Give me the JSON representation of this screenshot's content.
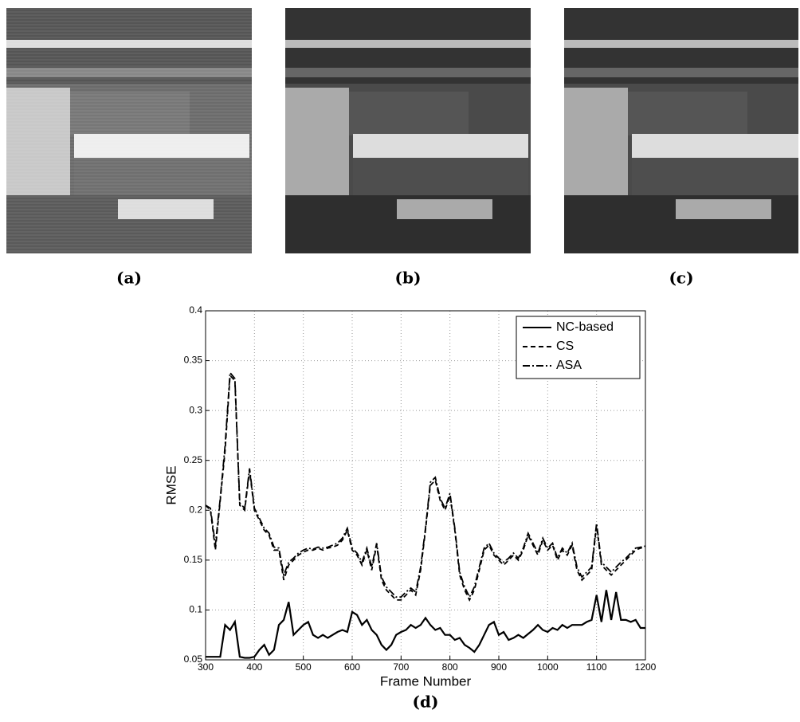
{
  "panels": {
    "captions": [
      "(a)",
      "(b)",
      "(c)",
      "(d)"
    ]
  },
  "chart_data": {
    "type": "line",
    "x_label": "Frame Number",
    "y_label": "RMSE",
    "xlim": [
      300,
      1200
    ],
    "ylim": [
      0.05,
      0.4
    ],
    "xticks": [
      300,
      400,
      500,
      600,
      700,
      800,
      900,
      1000,
      1100,
      1200
    ],
    "yticks": [
      0.05,
      0.1,
      0.15,
      0.2,
      0.25,
      0.3,
      0.35,
      0.4
    ],
    "grid": true,
    "legend": "top-right",
    "x": [
      300,
      310,
      320,
      330,
      340,
      350,
      360,
      370,
      380,
      390,
      400,
      410,
      420,
      430,
      440,
      450,
      460,
      470,
      480,
      490,
      500,
      510,
      520,
      530,
      540,
      550,
      560,
      570,
      580,
      590,
      600,
      610,
      620,
      630,
      640,
      650,
      660,
      670,
      680,
      690,
      700,
      710,
      720,
      730,
      740,
      750,
      760,
      770,
      780,
      790,
      800,
      810,
      820,
      830,
      840,
      850,
      860,
      870,
      880,
      890,
      900,
      910,
      920,
      930,
      940,
      950,
      960,
      970,
      980,
      990,
      1000,
      1010,
      1020,
      1030,
      1040,
      1050,
      1060,
      1070,
      1080,
      1090,
      1100,
      1110,
      1120,
      1130,
      1140,
      1150,
      1160,
      1170,
      1180,
      1190,
      1200
    ],
    "series": [
      {
        "name": "NC-based",
        "color": "#000000",
        "style": "solid",
        "values": [
          0.053,
          0.053,
          0.053,
          0.053,
          0.085,
          0.08,
          0.088,
          0.053,
          0.052,
          0.052,
          0.053,
          0.06,
          0.065,
          0.055,
          0.06,
          0.085,
          0.09,
          0.108,
          0.075,
          0.08,
          0.085,
          0.088,
          0.075,
          0.072,
          0.075,
          0.072,
          0.075,
          0.078,
          0.08,
          0.078,
          0.098,
          0.095,
          0.085,
          0.09,
          0.08,
          0.075,
          0.065,
          0.06,
          0.065,
          0.075,
          0.078,
          0.08,
          0.085,
          0.082,
          0.085,
          0.092,
          0.085,
          0.08,
          0.082,
          0.075,
          0.075,
          0.07,
          0.072,
          0.065,
          0.062,
          0.058,
          0.065,
          0.075,
          0.085,
          0.088,
          0.075,
          0.078,
          0.07,
          0.072,
          0.075,
          0.072,
          0.076,
          0.08,
          0.085,
          0.08,
          0.078,
          0.082,
          0.08,
          0.085,
          0.082,
          0.085,
          0.085,
          0.085,
          0.088,
          0.09,
          0.115,
          0.088,
          0.12,
          0.09,
          0.118,
          0.09,
          0.09,
          0.088,
          0.09,
          0.082,
          0.082
        ]
      },
      {
        "name": "CS",
        "color": "#000000",
        "style": "dashed",
        "values": [
          0.205,
          0.2,
          0.16,
          0.21,
          0.26,
          0.335,
          0.33,
          0.205,
          0.2,
          0.24,
          0.2,
          0.19,
          0.18,
          0.175,
          0.16,
          0.16,
          0.13,
          0.145,
          0.15,
          0.155,
          0.158,
          0.16,
          0.16,
          0.162,
          0.16,
          0.162,
          0.163,
          0.165,
          0.17,
          0.18,
          0.16,
          0.155,
          0.145,
          0.16,
          0.14,
          0.165,
          0.13,
          0.12,
          0.115,
          0.11,
          0.11,
          0.115,
          0.12,
          0.115,
          0.14,
          0.18,
          0.225,
          0.23,
          0.21,
          0.2,
          0.215,
          0.18,
          0.135,
          0.12,
          0.11,
          0.12,
          0.14,
          0.16,
          0.165,
          0.155,
          0.15,
          0.145,
          0.15,
          0.155,
          0.15,
          0.16,
          0.175,
          0.165,
          0.155,
          0.17,
          0.16,
          0.165,
          0.15,
          0.16,
          0.155,
          0.165,
          0.14,
          0.13,
          0.135,
          0.14,
          0.185,
          0.145,
          0.14,
          0.135,
          0.14,
          0.145,
          0.15,
          0.155,
          0.16,
          0.162,
          0.163
        ]
      },
      {
        "name": "ASA",
        "color": "#000000",
        "style": "dashdot",
        "values": [
          0.205,
          0.202,
          0.165,
          0.212,
          0.265,
          0.338,
          0.332,
          0.207,
          0.202,
          0.242,
          0.202,
          0.192,
          0.182,
          0.177,
          0.163,
          0.162,
          0.135,
          0.148,
          0.152,
          0.157,
          0.16,
          0.162,
          0.161,
          0.163,
          0.162,
          0.163,
          0.165,
          0.167,
          0.172,
          0.182,
          0.162,
          0.157,
          0.148,
          0.162,
          0.143,
          0.167,
          0.133,
          0.123,
          0.118,
          0.113,
          0.113,
          0.118,
          0.122,
          0.118,
          0.143,
          0.182,
          0.228,
          0.233,
          0.212,
          0.202,
          0.217,
          0.182,
          0.138,
          0.123,
          0.113,
          0.123,
          0.143,
          0.162,
          0.167,
          0.157,
          0.152,
          0.148,
          0.152,
          0.157,
          0.152,
          0.162,
          0.177,
          0.167,
          0.157,
          0.172,
          0.162,
          0.167,
          0.152,
          0.162,
          0.157,
          0.167,
          0.143,
          0.133,
          0.138,
          0.143,
          0.187,
          0.148,
          0.143,
          0.138,
          0.143,
          0.148,
          0.152,
          0.157,
          0.162,
          0.163,
          0.164
        ]
      }
    ]
  }
}
